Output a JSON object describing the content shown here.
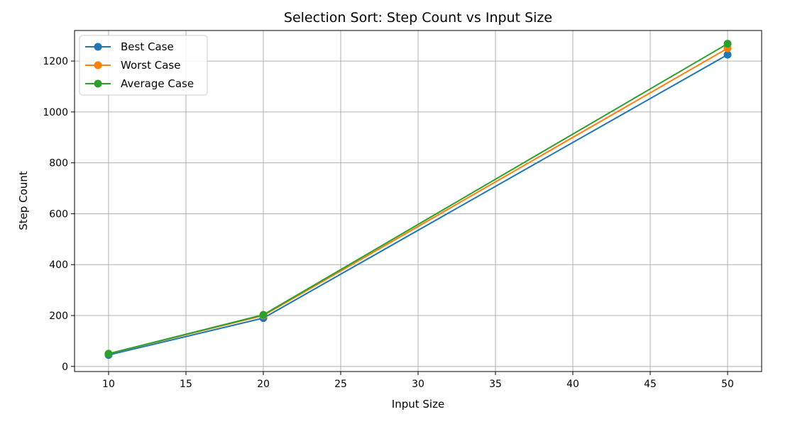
{
  "chart_data": {
    "type": "line",
    "title": "Selection Sort:  Step Count vs Input Size",
    "xlabel": "Input Size",
    "ylabel": "Step Count",
    "x": [
      10,
      20,
      50
    ],
    "xlim": [
      7.8,
      52.2
    ],
    "ylim": [
      -20,
      1320
    ],
    "xticks": [
      10,
      15,
      20,
      25,
      30,
      35,
      40,
      45,
      50
    ],
    "yticks": [
      0,
      200,
      400,
      600,
      800,
      1000,
      1200
    ],
    "grid": true,
    "legend_position": "top-left",
    "series": [
      {
        "name": "Best Case",
        "color": "#1f77b4",
        "marker": "circle",
        "values": [
          45,
          190,
          1225
        ]
      },
      {
        "name": "Worst Case",
        "color": "#ff7f0e",
        "marker": "circle",
        "values": [
          50,
          200,
          1250
        ]
      },
      {
        "name": "Average Case",
        "color": "#2ca02c",
        "marker": "circle",
        "values": [
          50,
          203,
          1268
        ]
      }
    ]
  }
}
